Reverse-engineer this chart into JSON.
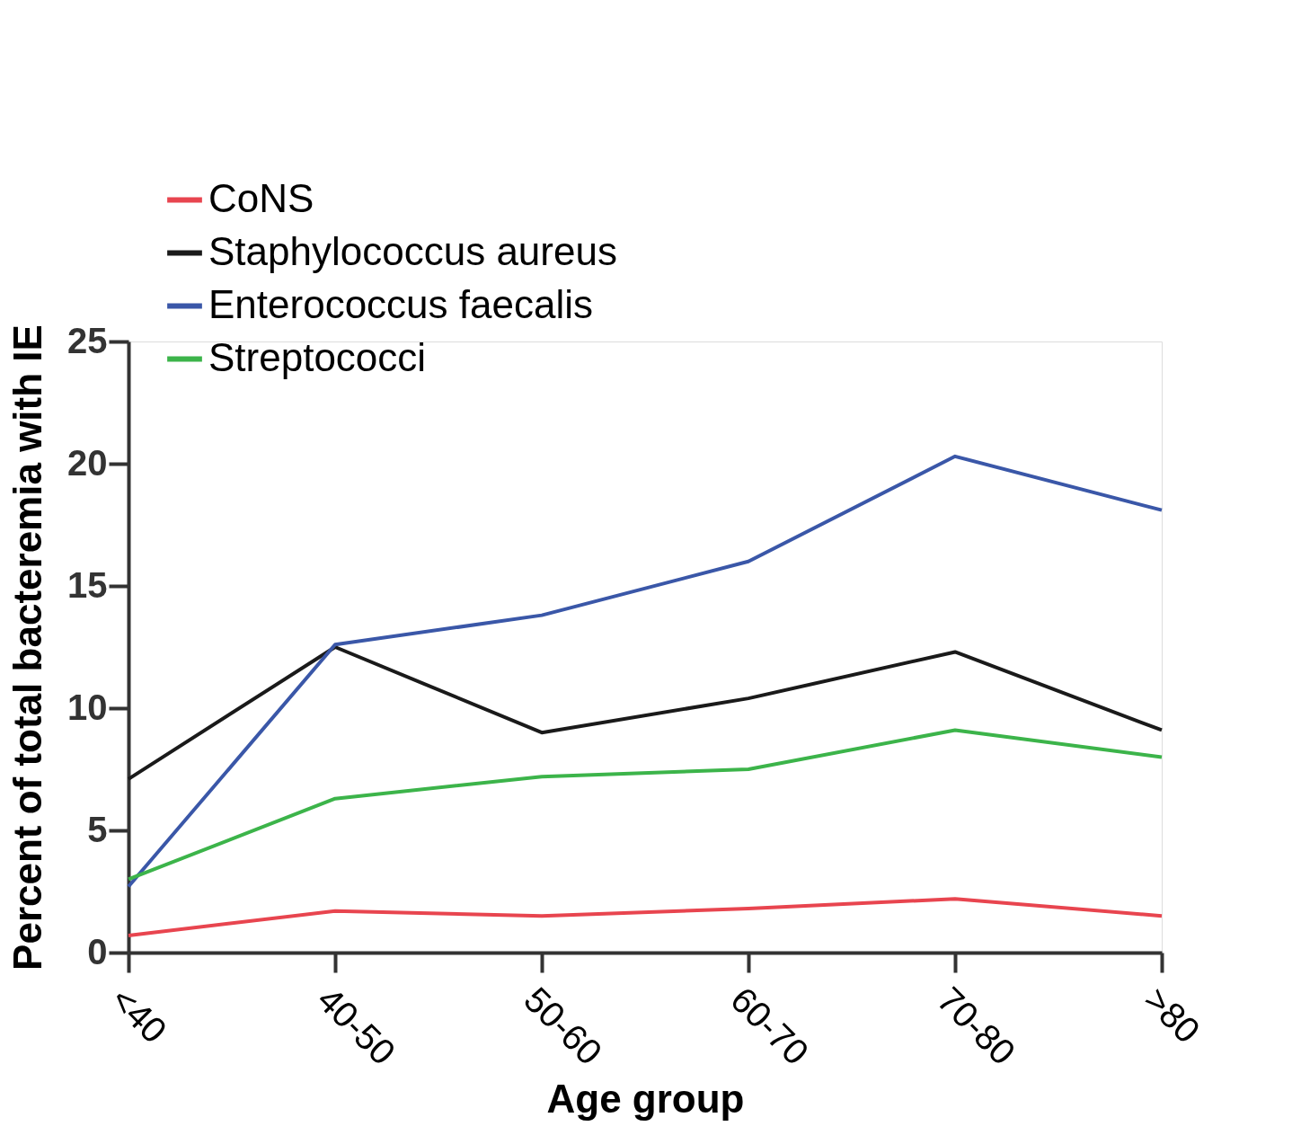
{
  "chart_data": {
    "type": "line",
    "xlabel": "Age group",
    "ylabel": "Percent of total bacteremia with IE",
    "categories": [
      "<40",
      "40-50",
      "50-60",
      "60-70",
      "70-80",
      ">80"
    ],
    "series": [
      {
        "name": "CoNS",
        "color": "#e8454f",
        "values": [
          0.7,
          1.7,
          1.5,
          1.8,
          2.2,
          1.5
        ]
      },
      {
        "name": "Staphylococcus aureus",
        "color": "#1a1a1a",
        "values": [
          7.1,
          12.5,
          9.0,
          10.4,
          12.3,
          9.1
        ]
      },
      {
        "name": "Enterococcus faecalis",
        "color": "#3a57a8",
        "values": [
          2.7,
          12.6,
          13.8,
          16.0,
          20.3,
          18.1
        ]
      },
      {
        "name": "Streptococci",
        "color": "#3cb44a",
        "values": [
          3.0,
          6.3,
          7.2,
          7.5,
          9.1,
          8.0
        ]
      }
    ],
    "ylim": [
      0,
      25
    ],
    "yticks": [
      0,
      5,
      10,
      15,
      20,
      25
    ],
    "grid": false,
    "legend": "top left",
    "marker": "none",
    "line_style": "solid"
  }
}
